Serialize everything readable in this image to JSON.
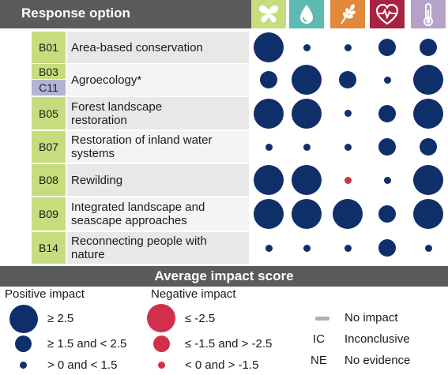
{
  "header": {
    "title": "Response option"
  },
  "columns": [
    {
      "icon": "butterfly-icon",
      "color": "#c7dc7d"
    },
    {
      "icon": "water-drop-icon",
      "color": "#5eb9b0"
    },
    {
      "icon": "wheat-icon",
      "color": "#e08a3a"
    },
    {
      "icon": "heart-pulse-icon",
      "color": "#a7233f"
    },
    {
      "icon": "thermometer-icon",
      "color": "#b6a2c8"
    }
  ],
  "rows": [
    {
      "codes": [
        "B01"
      ],
      "label_lines": [
        "Area-based conservation"
      ],
      "impacts": [
        3,
        1,
        1,
        2,
        2
      ]
    },
    {
      "codes": [
        "B03",
        "C11"
      ],
      "label_lines": [
        "Agroecology*"
      ],
      "impacts": [
        2,
        3,
        2,
        1,
        3
      ]
    },
    {
      "codes": [
        "B05"
      ],
      "label_lines": [
        "Forest landscape",
        "restoration"
      ],
      "impacts": [
        3,
        3,
        1,
        2,
        3
      ]
    },
    {
      "codes": [
        "B07"
      ],
      "label_lines": [
        "Restoration of inland water",
        "systems"
      ],
      "impacts": [
        1,
        1,
        1,
        2,
        2
      ]
    },
    {
      "codes": [
        "B08"
      ],
      "label_lines": [
        "Rewilding"
      ],
      "impacts": [
        3,
        3,
        -1,
        1,
        3
      ]
    },
    {
      "codes": [
        "B09"
      ],
      "label_lines": [
        "Integrated landscape and",
        "seascape approaches"
      ],
      "impacts": [
        3,
        3,
        3,
        2,
        3
      ]
    },
    {
      "codes": [
        "B14"
      ],
      "label_lines": [
        "Reconnecting people with",
        "nature"
      ],
      "impacts": [
        1,
        1,
        1,
        2,
        1
      ]
    }
  ],
  "legend": {
    "title": "Average impact score",
    "positive_heading": "Positive impact",
    "negative_heading": "Negative impact",
    "positive_items": [
      "≥ 2.5",
      "≥ 1.5 and < 2.5",
      "> 0 and < 1.5"
    ],
    "negative_items": [
      "≤ -2.5",
      "≤ -1.5 and > -2.5",
      "< 0 and > -1.5"
    ],
    "other_items": [
      {
        "symbol": "",
        "label": "No impact"
      },
      {
        "symbol": "IC",
        "label": "Inconclusive"
      },
      {
        "symbol": "NE",
        "label": "No evidence"
      }
    ]
  }
}
